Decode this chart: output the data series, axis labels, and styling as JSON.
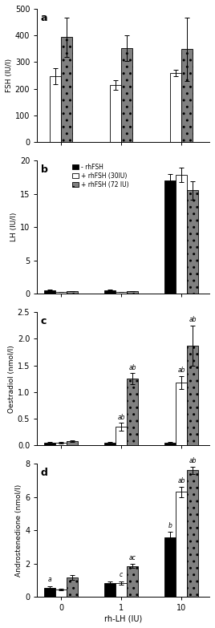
{
  "panel_a": {
    "title": "a",
    "ylabel": "FSH (IU/l)",
    "ylim": [
      0,
      500
    ],
    "yticks": [
      0,
      100,
      200,
      300,
      400,
      500
    ],
    "bar_white": [
      248,
      215,
      258
    ],
    "bar_white_err": [
      30,
      18,
      12
    ],
    "bar_hatch": [
      393,
      352,
      348
    ],
    "bar_hatch_err": [
      75,
      48,
      118
    ]
  },
  "panel_b": {
    "title": "b",
    "ylabel": "LH (IU/l)",
    "ylim": [
      0,
      20
    ],
    "yticks": [
      0,
      5,
      10,
      15,
      20
    ],
    "legend_labels": [
      "- rhFSH",
      "+ rhFSH (30IU)",
      "+ rhFSH (72 IU)"
    ],
    "bar_black": [
      0.55,
      0.55,
      17.0
    ],
    "bar_black_err": [
      0.1,
      0.1,
      0.9
    ],
    "bar_white": [
      0.25,
      0.25,
      17.8
    ],
    "bar_white_err": [
      0.03,
      0.03,
      1.1
    ],
    "bar_hatch": [
      0.35,
      0.35,
      15.5
    ],
    "bar_hatch_err": [
      0.03,
      0.03,
      1.4
    ]
  },
  "panel_c": {
    "title": "c",
    "ylabel": "Oestradiol (nmol/l)",
    "ylim": [
      0,
      2.5
    ],
    "yticks": [
      0,
      0.5,
      1.0,
      1.5,
      2.0,
      2.5
    ],
    "bar_black": [
      0.05,
      0.05,
      0.05
    ],
    "bar_black_err": [
      0.01,
      0.01,
      0.01
    ],
    "bar_white": [
      0.05,
      0.35,
      1.18
    ],
    "bar_white_err": [
      0.01,
      0.07,
      0.12
    ],
    "bar_hatch": [
      0.08,
      1.25,
      1.87
    ],
    "bar_hatch_err": [
      0.01,
      0.1,
      0.38
    ],
    "annotations_white": [
      "",
      "ab",
      "ab"
    ],
    "annotations_hatch": [
      "",
      "ab",
      "ab"
    ]
  },
  "panel_d": {
    "title": "d",
    "ylabel": "Androstenedione (nmol/l)",
    "ylim": [
      0,
      8.0
    ],
    "yticks": [
      0,
      2.0,
      4.0,
      6.0,
      8.0
    ],
    "bar_black": [
      0.55,
      0.85,
      3.6
    ],
    "bar_black_err": [
      0.08,
      0.1,
      0.3
    ],
    "bar_white": [
      0.45,
      0.85,
      6.3
    ],
    "bar_white_err": [
      0.06,
      0.1,
      0.3
    ],
    "bar_hatch": [
      1.15,
      1.85,
      7.6
    ],
    "bar_hatch_err": [
      0.15,
      0.12,
      0.2
    ],
    "annotations_black": [
      "a",
      "",
      "b"
    ],
    "annotations_white": [
      "",
      "c",
      "ab"
    ],
    "annotations_hatch": [
      "",
      "ac",
      "ab"
    ]
  },
  "xlabel": "rh-LH (IU)",
  "xtick_labels": [
    "0",
    "1",
    "10"
  ],
  "bar_width": 0.28,
  "group_positions": [
    0.5,
    2.0,
    3.5
  ]
}
